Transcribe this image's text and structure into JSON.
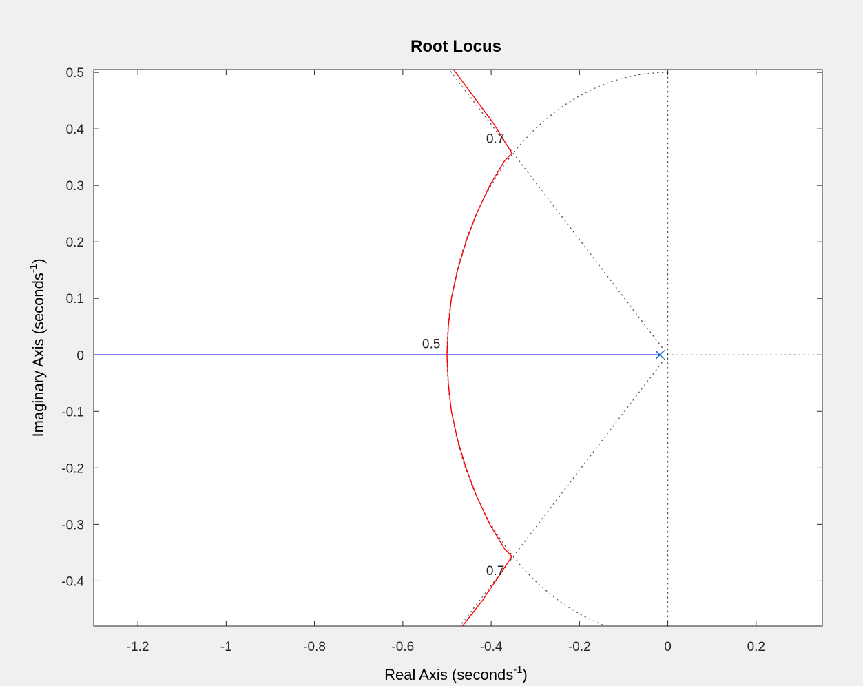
{
  "chart_data": {
    "type": "line",
    "title": "Root Locus",
    "xlabel": "Real Axis (seconds",
    "ylabel": "Imaginary Axis (seconds",
    "label_exponent": "-1",
    "label_close": ")",
    "xlim": [
      -1.3,
      0.35
    ],
    "ylim": [
      -0.48,
      0.505
    ],
    "x_ticks": [
      -1.2,
      -1,
      -0.8,
      -0.6,
      -0.4,
      -0.2,
      0,
      0.2
    ],
    "x_tick_labels": [
      "-1.2",
      "-1",
      "-0.8",
      "-0.6",
      "-0.4",
      "-0.2",
      "0",
      "0.2"
    ],
    "y_ticks": [
      0.5,
      0.4,
      0.3,
      0.2,
      0.1,
      0,
      -0.1,
      -0.2,
      -0.3,
      -0.4
    ],
    "y_tick_labels": [
      "0.5",
      "0.4",
      "0.3",
      "0.2",
      "0.1",
      "0",
      "-0.1",
      "-0.2",
      "-0.3",
      "-0.4"
    ],
    "grid": false,
    "series": [
      {
        "color": "#0000ff",
        "points": [
          [
            -1.3,
            0
          ],
          [
            -0.018,
            0
          ]
        ]
      },
      {
        "color": "#ff0000",
        "points": [
          [
            -0.5,
            0
          ],
          [
            -0.497,
            0.05
          ],
          [
            -0.49,
            0.1
          ],
          [
            -0.476,
            0.15
          ],
          [
            -0.457,
            0.2
          ],
          [
            -0.433,
            0.25
          ],
          [
            -0.403,
            0.3
          ],
          [
            -0.37,
            0.343
          ],
          [
            -0.353,
            0.357
          ],
          [
            -0.395,
            0.41
          ],
          [
            -0.485,
            0.505
          ]
        ]
      },
      {
        "color": "#ff0000",
        "points": [
          [
            -0.5,
            0
          ],
          [
            -0.497,
            -0.05
          ],
          [
            -0.49,
            -0.1
          ],
          [
            -0.476,
            -0.15
          ],
          [
            -0.457,
            -0.2
          ],
          [
            -0.433,
            -0.25
          ],
          [
            -0.403,
            -0.3
          ],
          [
            -0.37,
            -0.343
          ],
          [
            -0.353,
            -0.357
          ],
          [
            -0.42,
            -0.435
          ],
          [
            -0.465,
            -0.48
          ]
        ]
      }
    ],
    "poles": [
      [
        -0.018,
        0
      ]
    ],
    "pole_color": "#1f6fd6",
    "damping_ratio_lines": [
      0.7
    ],
    "natural_frequency_circles": [
      0.5
    ],
    "grid_color": "#555555",
    "annotations": [
      {
        "text": "0.7",
        "x": -0.37,
        "y": 0.375
      },
      {
        "text": "0.5",
        "x": -0.515,
        "y": 0.012
      },
      {
        "text": "0.7",
        "x": -0.37,
        "y": -0.39
      }
    ]
  }
}
